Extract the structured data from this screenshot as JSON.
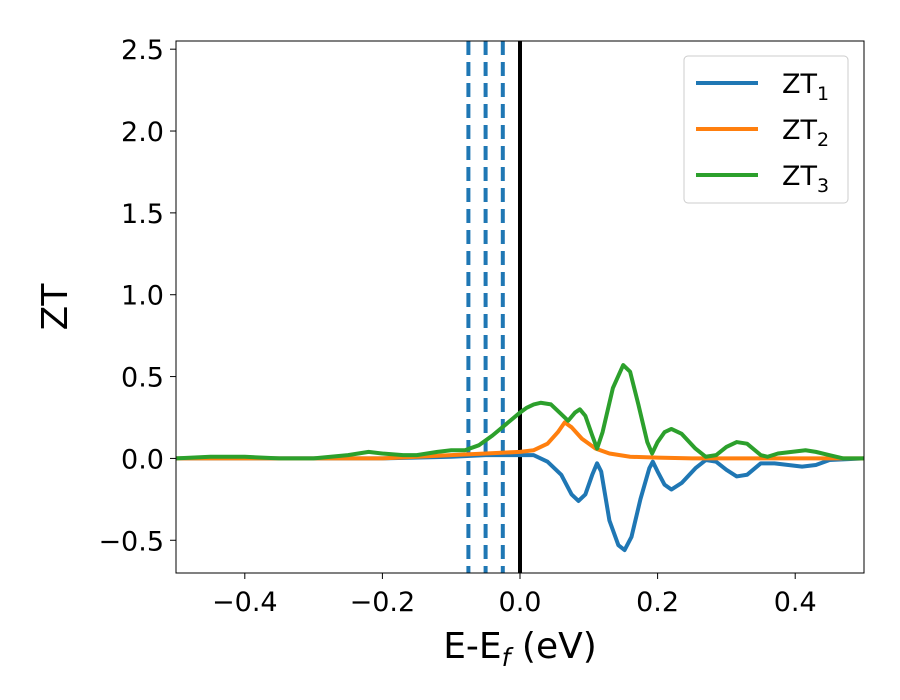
{
  "chart_data": {
    "type": "line",
    "xlabel": {
      "main": "E-E",
      "sub": "f",
      "unit": " (eV)"
    },
    "ylabel": "ZT",
    "xlim": [
      -0.5,
      0.5
    ],
    "ylim": [
      -0.7,
      2.55
    ],
    "xticks": [
      {
        "value": -0.4,
        "label": "−0.4"
      },
      {
        "value": -0.2,
        "label": "−0.2"
      },
      {
        "value": 0.0,
        "label": "0.0"
      },
      {
        "value": 0.2,
        "label": "0.2"
      },
      {
        "value": 0.4,
        "label": "0.4"
      }
    ],
    "yticks": [
      {
        "value": -0.5,
        "label": "−0.5"
      },
      {
        "value": 0.0,
        "label": "0.0"
      },
      {
        "value": 0.5,
        "label": "0.5"
      },
      {
        "value": 1.0,
        "label": "1.0"
      },
      {
        "value": 1.5,
        "label": "1.5"
      },
      {
        "value": 2.0,
        "label": "2.0"
      },
      {
        "value": 2.5,
        "label": "2.5"
      }
    ],
    "grid": false,
    "legend_position": "top-right",
    "vlines": [
      {
        "x": 0.0,
        "style": "solid",
        "color": "#000000"
      },
      {
        "x": -0.025,
        "style": "dashed",
        "color": "#1f77b4"
      },
      {
        "x": -0.05,
        "style": "dashed",
        "color": "#1f77b4"
      },
      {
        "x": -0.075,
        "style": "dashed",
        "color": "#1f77b4"
      }
    ],
    "series": [
      {
        "name": "ZT",
        "sub": "1",
        "color": "#1f77b4",
        "points": [
          [
            -0.5,
            0.0
          ],
          [
            -0.2,
            0.0
          ],
          [
            -0.1,
            0.01
          ],
          [
            -0.05,
            0.02
          ],
          [
            0.0,
            0.02
          ],
          [
            0.02,
            0.02
          ],
          [
            0.04,
            -0.02
          ],
          [
            0.06,
            -0.1
          ],
          [
            0.075,
            -0.22
          ],
          [
            0.085,
            -0.26
          ],
          [
            0.095,
            -0.22
          ],
          [
            0.105,
            -0.1
          ],
          [
            0.112,
            -0.03
          ],
          [
            0.118,
            -0.08
          ],
          [
            0.13,
            -0.38
          ],
          [
            0.143,
            -0.53
          ],
          [
            0.152,
            -0.56
          ],
          [
            0.162,
            -0.48
          ],
          [
            0.175,
            -0.25
          ],
          [
            0.188,
            -0.06
          ],
          [
            0.193,
            -0.02
          ],
          [
            0.2,
            -0.08
          ],
          [
            0.21,
            -0.16
          ],
          [
            0.22,
            -0.19
          ],
          [
            0.235,
            -0.15
          ],
          [
            0.255,
            -0.06
          ],
          [
            0.27,
            -0.01
          ],
          [
            0.285,
            -0.02
          ],
          [
            0.3,
            -0.07
          ],
          [
            0.315,
            -0.11
          ],
          [
            0.33,
            -0.1
          ],
          [
            0.35,
            -0.03
          ],
          [
            0.37,
            -0.03
          ],
          [
            0.39,
            -0.04
          ],
          [
            0.41,
            -0.05
          ],
          [
            0.43,
            -0.04
          ],
          [
            0.45,
            -0.01
          ],
          [
            0.5,
            0.0
          ]
        ]
      },
      {
        "name": "ZT",
        "sub": "2",
        "color": "#ff7f0e",
        "points": [
          [
            -0.5,
            0.0
          ],
          [
            -0.3,
            0.0
          ],
          [
            -0.2,
            0.0
          ],
          [
            -0.15,
            0.01
          ],
          [
            -0.1,
            0.02
          ],
          [
            -0.05,
            0.03
          ],
          [
            0.0,
            0.04
          ],
          [
            0.02,
            0.05
          ],
          [
            0.04,
            0.09
          ],
          [
            0.055,
            0.16
          ],
          [
            0.065,
            0.22
          ],
          [
            0.075,
            0.19
          ],
          [
            0.09,
            0.12
          ],
          [
            0.11,
            0.06
          ],
          [
            0.13,
            0.03
          ],
          [
            0.16,
            0.01
          ],
          [
            0.2,
            0.005
          ],
          [
            0.25,
            0.0
          ],
          [
            0.5,
            0.0
          ]
        ]
      },
      {
        "name": "ZT",
        "sub": "3",
        "color": "#2ca02c",
        "points": [
          [
            -0.5,
            0.0
          ],
          [
            -0.45,
            0.01
          ],
          [
            -0.4,
            0.01
          ],
          [
            -0.35,
            0.0
          ],
          [
            -0.3,
            0.0
          ],
          [
            -0.25,
            0.02
          ],
          [
            -0.22,
            0.04
          ],
          [
            -0.2,
            0.03
          ],
          [
            -0.17,
            0.02
          ],
          [
            -0.15,
            0.02
          ],
          [
            -0.12,
            0.04
          ],
          [
            -0.1,
            0.05
          ],
          [
            -0.08,
            0.05
          ],
          [
            -0.06,
            0.08
          ],
          [
            -0.04,
            0.14
          ],
          [
            -0.02,
            0.21
          ],
          [
            0.0,
            0.28
          ],
          [
            0.01,
            0.31
          ],
          [
            0.02,
            0.33
          ],
          [
            0.03,
            0.34
          ],
          [
            0.045,
            0.33
          ],
          [
            0.06,
            0.27
          ],
          [
            0.07,
            0.23
          ],
          [
            0.08,
            0.28
          ],
          [
            0.087,
            0.3
          ],
          [
            0.095,
            0.26
          ],
          [
            0.105,
            0.14
          ],
          [
            0.112,
            0.06
          ],
          [
            0.12,
            0.16
          ],
          [
            0.135,
            0.43
          ],
          [
            0.15,
            0.57
          ],
          [
            0.16,
            0.53
          ],
          [
            0.172,
            0.33
          ],
          [
            0.185,
            0.1
          ],
          [
            0.192,
            0.03
          ],
          [
            0.2,
            0.1
          ],
          [
            0.21,
            0.16
          ],
          [
            0.22,
            0.18
          ],
          [
            0.235,
            0.15
          ],
          [
            0.255,
            0.06
          ],
          [
            0.27,
            0.01
          ],
          [
            0.285,
            0.02
          ],
          [
            0.3,
            0.07
          ],
          [
            0.315,
            0.1
          ],
          [
            0.33,
            0.09
          ],
          [
            0.35,
            0.02
          ],
          [
            0.36,
            0.01
          ],
          [
            0.375,
            0.03
          ],
          [
            0.395,
            0.04
          ],
          [
            0.415,
            0.05
          ],
          [
            0.43,
            0.04
          ],
          [
            0.45,
            0.02
          ],
          [
            0.47,
            0.0
          ],
          [
            0.5,
            0.0
          ]
        ]
      }
    ]
  }
}
